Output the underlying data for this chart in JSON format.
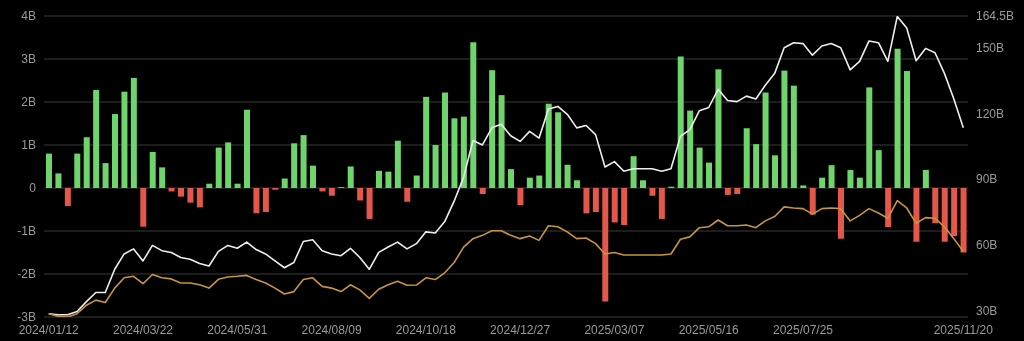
{
  "chart_data": {
    "type": "bar",
    "categories": [
      "2024/01/12",
      null,
      null,
      null,
      null,
      null,
      null,
      null,
      null,
      null,
      "2024/03/22",
      null,
      null,
      null,
      null,
      null,
      null,
      null,
      null,
      null,
      "2024/05/31",
      null,
      null,
      null,
      null,
      null,
      null,
      null,
      null,
      null,
      "2024/08/09",
      null,
      null,
      null,
      null,
      null,
      null,
      null,
      null,
      null,
      "2024/10/18",
      null,
      null,
      null,
      null,
      null,
      null,
      null,
      null,
      null,
      "2024/12/27",
      null,
      null,
      null,
      null,
      null,
      null,
      null,
      null,
      null,
      "2025/03/07",
      null,
      null,
      null,
      null,
      null,
      null,
      null,
      null,
      null,
      "2025/05/16",
      null,
      null,
      null,
      null,
      null,
      null,
      null,
      null,
      null,
      "2025/07/25",
      null,
      null,
      null,
      null,
      null,
      null,
      null,
      null,
      null,
      null,
      null,
      null,
      null,
      null,
      null,
      null,
      "2025/11/20"
    ],
    "series": [
      {
        "axis": "y",
        "values": [
          0.8,
          0.34,
          -0.42,
          0.8,
          1.18,
          2.28,
          0.58,
          1.72,
          2.24,
          2.56,
          -0.9,
          0.84,
          0.48,
          -0.08,
          -0.2,
          -0.34,
          -0.45,
          0.1,
          0.94,
          1.06,
          0.1,
          1.82,
          -0.59,
          -0.56,
          -0.04,
          0.22,
          1.04,
          1.23,
          0.52,
          -0.08,
          -0.18,
          0.02,
          0.5,
          -0.29,
          -0.72,
          0.4,
          0.38,
          1.1,
          -0.32,
          0.29,
          2.12,
          1.0,
          2.22,
          1.62,
          1.66,
          3.39,
          -0.14,
          2.74,
          2.16,
          0.44,
          -0.4,
          0.24,
          0.29,
          1.96,
          1.76,
          0.54,
          0.18,
          -0.59,
          -0.56,
          -2.64,
          -0.8,
          -0.86,
          0.74,
          0.18,
          -0.18,
          -0.72,
          0.03,
          3.06,
          1.8,
          0.94,
          0.59,
          2.76,
          -0.16,
          -0.14,
          1.39,
          1.02,
          2.22,
          0.76,
          2.73,
          2.38,
          0.06,
          -0.62,
          0.24,
          0.53,
          -1.18,
          0.42,
          0.24,
          2.34,
          0.88,
          -0.91,
          3.24,
          2.72,
          -1.25,
          0.42,
          -0.82,
          -1.25,
          -1.12,
          -1.5
        ],
        "colors": [
          "#6fd46c",
          "#6fd46c",
          "#e5574a",
          "#6fd46c",
          "#6fd46c",
          "#6fd46c",
          "#6fd46c",
          "#6fd46c",
          "#6fd46c",
          "#6fd46c",
          "#e5574a",
          "#6fd46c",
          "#6fd46c",
          "#e5574a",
          "#e5574a",
          "#e5574a",
          "#e5574a",
          "#6fd46c",
          "#6fd46c",
          "#6fd46c",
          "#6fd46c",
          "#6fd46c",
          "#e5574a",
          "#e5574a",
          "#e5574a",
          "#6fd46c",
          "#6fd46c",
          "#6fd46c",
          "#6fd46c",
          "#e5574a",
          "#e5574a",
          "#6fd46c",
          "#6fd46c",
          "#e5574a",
          "#e5574a",
          "#6fd46c",
          "#6fd46c",
          "#6fd46c",
          "#e5574a",
          "#6fd46c",
          "#6fd46c",
          "#6fd46c",
          "#6fd46c",
          "#6fd46c",
          "#6fd46c",
          "#6fd46c",
          "#e5574a",
          "#6fd46c",
          "#6fd46c",
          "#6fd46c",
          "#e5574a",
          "#6fd46c",
          "#6fd46c",
          "#6fd46c",
          "#6fd46c",
          "#6fd46c",
          "#6fd46c",
          "#e5574a",
          "#e5574a",
          "#e5574a",
          "#e5574a",
          "#e5574a",
          "#6fd46c",
          "#6fd46c",
          "#e5574a",
          "#e5574a",
          "#6fd46c",
          "#6fd46c",
          "#6fd46c",
          "#6fd46c",
          "#6fd46c",
          "#6fd46c",
          "#e5574a",
          "#e5574a",
          "#6fd46c",
          "#6fd46c",
          "#6fd46c",
          "#6fd46c",
          "#6fd46c",
          "#6fd46c",
          "#6fd46c",
          "#e5574a",
          "#6fd46c",
          "#6fd46c",
          "#e5574a",
          "#6fd46c",
          "#6fd46c",
          "#6fd46c",
          "#6fd46c",
          "#e5574a",
          "#6fd46c",
          "#6fd46c",
          "#e5574a",
          "#6fd46c",
          "#e5574a",
          "#e5574a",
          "#e5574a",
          "#e5574a"
        ]
      },
      {
        "type": "line",
        "axis": "y2",
        "color": "#eeeeee",
        "values": [
          28.5,
          28,
          28,
          29.5,
          34,
          38.2,
          38.2,
          48.8,
          55.8,
          58.1,
          52.6,
          59.7,
          57.3,
          56.5,
          54.2,
          53.4,
          51.4,
          50.3,
          57,
          59.7,
          58.4,
          61.2,
          57.8,
          55.8,
          52.6,
          49.5,
          51.9,
          61.5,
          62.3,
          57.3,
          55.8,
          55,
          58.4,
          54.2,
          48.8,
          56.5,
          59,
          61.2,
          58.1,
          60.5,
          65.9,
          65.4,
          70.6,
          79.9,
          90.8,
          107.6,
          105.6,
          113.4,
          115,
          109.8,
          107.2,
          111.8,
          108.7,
          122,
          123.2,
          119.6,
          113.4,
          114.5,
          110.3,
          95.5,
          98,
          93.6,
          94.7,
          94.7,
          94.7,
          93.6,
          94.7,
          109.5,
          112.6,
          121.2,
          122.7,
          131,
          125.9,
          125.4,
          127.9,
          126.6,
          132.9,
          138.3,
          150,
          152.3,
          151.9,
          146.6,
          150.8,
          151.9,
          150,
          139.9,
          143.8,
          153.1,
          152.3,
          143.8,
          164.3,
          159,
          144.1,
          149.7,
          147.7,
          138.3,
          126.6,
          113.4
        ]
      },
      {
        "type": "line",
        "axis": "y2",
        "color": "#c9953b",
        "values": [
          28.5,
          27.3,
          27,
          28.5,
          32.4,
          34.7,
          33.6,
          40.2,
          44.9,
          45.6,
          42.2,
          46.4,
          44.9,
          44.4,
          42.5,
          42.5,
          41.7,
          40.2,
          44.2,
          45.3,
          45.6,
          46,
          44.1,
          42.5,
          40.2,
          37.5,
          38.6,
          44.1,
          44.9,
          41,
          40.2,
          38.6,
          41.7,
          39.4,
          35.5,
          39.7,
          41.7,
          43.3,
          41.5,
          41.6,
          44.9,
          44.1,
          47.2,
          51.9,
          58.9,
          62.8,
          64.3,
          66.4,
          66.4,
          64.3,
          62.8,
          64,
          62,
          68.7,
          68.2,
          65.9,
          62.8,
          63.1,
          60.5,
          55.8,
          56.5,
          55.3,
          55.3,
          55.3,
          55.3,
          55.3,
          55.8,
          62.5,
          63.6,
          67.8,
          68.2,
          71.3,
          68.7,
          68.7,
          69,
          67.8,
          70.9,
          72.9,
          77.3,
          76.8,
          76.5,
          74,
          76.5,
          76.8,
          76.5,
          70.9,
          73.4,
          76.5,
          74.5,
          72.1,
          80.2,
          76.8,
          69.8,
          72.4,
          72.1,
          68.2,
          62.8,
          56.9
        ]
      }
    ],
    "ylim": [
      -3,
      4
    ],
    "yticks": [
      {
        "value": -3,
        "label": "-3B"
      },
      {
        "value": -2,
        "label": "-2B"
      },
      {
        "value": -1,
        "label": "-1B"
      },
      0,
      {
        "value": 1,
        "label": "1B"
      },
      {
        "value": 2,
        "label": "2B"
      },
      {
        "value": 3,
        "label": "3B"
      },
      {
        "value": 4,
        "label": "4B"
      }
    ],
    "y2lim": [
      27,
      164.5
    ],
    "y2ticks": [
      {
        "value": 30,
        "label": "30B"
      },
      {
        "value": 60,
        "label": "60B"
      },
      {
        "value": 90,
        "label": "90B"
      },
      {
        "value": 120,
        "label": "120B"
      },
      {
        "value": 150,
        "label": "150B"
      },
      {
        "value": 164.5,
        "label": "164.5B"
      }
    ],
    "grid": "y"
  }
}
